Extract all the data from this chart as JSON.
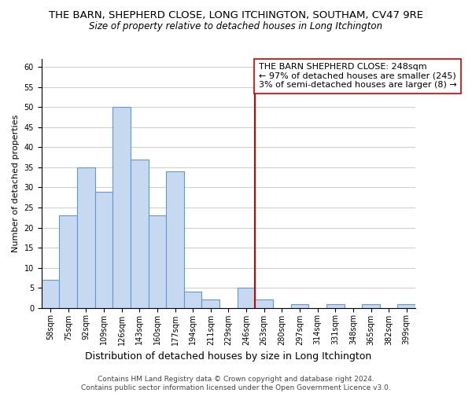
{
  "title": "THE BARN, SHEPHERD CLOSE, LONG ITCHINGTON, SOUTHAM, CV47 9RE",
  "subtitle": "Size of property relative to detached houses in Long Itchington",
  "xlabel": "Distribution of detached houses by size in Long Itchington",
  "ylabel": "Number of detached properties",
  "bar_labels": [
    "58sqm",
    "75sqm",
    "92sqm",
    "109sqm",
    "126sqm",
    "143sqm",
    "160sqm",
    "177sqm",
    "194sqm",
    "211sqm",
    "229sqm",
    "246sqm",
    "263sqm",
    "280sqm",
    "297sqm",
    "314sqm",
    "331sqm",
    "348sqm",
    "365sqm",
    "382sqm",
    "399sqm"
  ],
  "bar_values": [
    7,
    23,
    35,
    29,
    50,
    37,
    23,
    34,
    4,
    2,
    0,
    5,
    2,
    0,
    1,
    0,
    1,
    0,
    1,
    0,
    1
  ],
  "bar_color": "#c6d9f0",
  "bar_edge_color": "#5b9bd5",
  "vline_x_index": 11.5,
  "vline_color": "#cc0000",
  "annotation_text": "THE BARN SHEPHERD CLOSE: 248sqm\n← 97% of detached houses are smaller (245)\n3% of semi-detached houses are larger (8) →",
  "annotation_box_color": "#ffffff",
  "annotation_box_edge_color": "#cc0000",
  "ylim": [
    0,
    62
  ],
  "yticks": [
    0,
    5,
    10,
    15,
    20,
    25,
    30,
    35,
    40,
    45,
    50,
    55,
    60
  ],
  "grid_color": "#cccccc",
  "background_color": "#ffffff",
  "footer_text": "Contains HM Land Registry data © Crown copyright and database right 2024.\nContains public sector information licensed under the Open Government Licence v3.0.",
  "title_fontsize": 9.5,
  "subtitle_fontsize": 8.5,
  "xlabel_fontsize": 9,
  "ylabel_fontsize": 8,
  "tick_fontsize": 7,
  "annotation_fontsize": 8,
  "footer_fontsize": 6.5
}
